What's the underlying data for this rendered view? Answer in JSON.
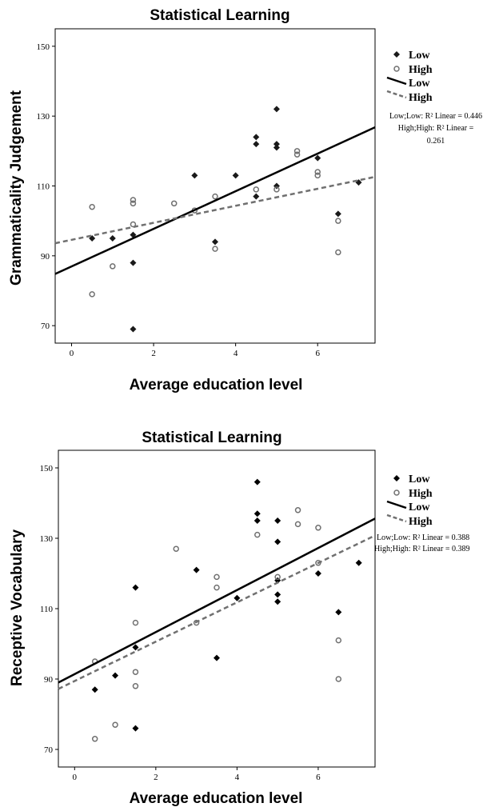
{
  "chart_data": [
    {
      "type": "scatter",
      "title": "Statistical Learning",
      "xlabel": "Average education level",
      "ylabel": "Grammaticality Judgement",
      "xlim": [
        -0.4,
        7.4
      ],
      "ylim": [
        65,
        155
      ],
      "xticks": [
        "0",
        "2",
        "4",
        "6"
      ],
      "yticks": [
        "70",
        "90",
        "110",
        "130",
        "150"
      ],
      "grid": false,
      "legend_position": "right",
      "series": [
        {
          "name": "Low",
          "marker": "diamond",
          "color": "#1a1a1a",
          "points": [
            [
              0.5,
              95
            ],
            [
              1,
              95
            ],
            [
              1.5,
              96
            ],
            [
              1.5,
              88
            ],
            [
              1.5,
              69
            ],
            [
              3,
              113
            ],
            [
              3.5,
              94
            ],
            [
              4,
              113
            ],
            [
              4.5,
              124
            ],
            [
              4.5,
              122
            ],
            [
              4.5,
              107
            ],
            [
              5,
              132
            ],
            [
              5,
              122
            ],
            [
              5,
              121
            ],
            [
              5,
              110
            ],
            [
              6,
              118
            ],
            [
              6.5,
              102
            ],
            [
              7,
              111
            ]
          ]
        },
        {
          "name": "High",
          "marker": "circle",
          "color": "#707070",
          "points": [
            [
              0.5,
              104
            ],
            [
              0.5,
              79
            ],
            [
              1,
              87
            ],
            [
              1.5,
              106
            ],
            [
              1.5,
              105
            ],
            [
              1.5,
              99
            ],
            [
              2.5,
              105
            ],
            [
              3,
              103
            ],
            [
              3.5,
              107
            ],
            [
              3.5,
              92
            ],
            [
              4.5,
              109
            ],
            [
              5,
              109
            ],
            [
              5.5,
              120
            ],
            [
              5.5,
              119
            ],
            [
              6,
              114
            ],
            [
              6,
              113
            ],
            [
              6.5,
              100
            ],
            [
              6.5,
              91
            ]
          ]
        }
      ],
      "fit_lines": [
        {
          "name": "Low",
          "style": "solid",
          "color": "#000000",
          "x": [
            -0.4,
            7.4
          ],
          "y": [
            84.8,
            126.8
          ]
        },
        {
          "name": "High",
          "style": "dashed",
          "color": "#707070",
          "x": [
            -0.4,
            7.4
          ],
          "y": [
            93.6,
            112.6
          ]
        }
      ],
      "annotation": [
        "Low;Low: R² Linear = 0.446",
        "High;High: R² Linear =",
        "0.261"
      ]
    },
    {
      "type": "scatter",
      "title": "Statistical Learning",
      "xlabel": "Average education level",
      "ylabel": "Receptive Vocabulary",
      "xlim": [
        -0.4,
        7.4
      ],
      "ylim": [
        65,
        155
      ],
      "xticks": [
        "0",
        "2",
        "4",
        "6"
      ],
      "yticks": [
        "70",
        "90",
        "110",
        "130",
        "150"
      ],
      "grid": false,
      "legend_position": "right",
      "series": [
        {
          "name": "Low",
          "marker": "diamond",
          "color": "#000000",
          "points": [
            [
              0.5,
              87
            ],
            [
              1,
              91
            ],
            [
              1.5,
              116
            ],
            [
              1.5,
              99
            ],
            [
              1.5,
              76
            ],
            [
              3,
              121
            ],
            [
              3.5,
              96
            ],
            [
              4,
              113
            ],
            [
              4.5,
              146
            ],
            [
              4.5,
              137
            ],
            [
              4.5,
              135
            ],
            [
              5,
              135
            ],
            [
              5,
              129
            ],
            [
              5,
              118
            ],
            [
              5,
              114
            ],
            [
              5,
              112
            ],
            [
              6,
              120
            ],
            [
              6.5,
              109
            ],
            [
              7,
              123
            ]
          ]
        },
        {
          "name": "High",
          "marker": "circle",
          "color": "#707070",
          "points": [
            [
              0.5,
              95
            ],
            [
              0.5,
              73
            ],
            [
              1,
              77
            ],
            [
              1.5,
              106
            ],
            [
              1.5,
              92
            ],
            [
              1.5,
              88
            ],
            [
              2.5,
              127
            ],
            [
              3,
              106
            ],
            [
              3.5,
              119
            ],
            [
              3.5,
              116
            ],
            [
              4.5,
              131
            ],
            [
              5,
              119
            ],
            [
              5.5,
              138
            ],
            [
              5.5,
              134
            ],
            [
              6,
              133
            ],
            [
              6,
              123
            ],
            [
              6.5,
              101
            ],
            [
              6.5,
              90
            ]
          ]
        }
      ],
      "fit_lines": [
        {
          "name": "Low",
          "style": "solid",
          "color": "#000000",
          "x": [
            -0.4,
            7.4
          ],
          "y": [
            89.0,
            135.6
          ]
        },
        {
          "name": "High",
          "style": "dashed",
          "color": "#707070",
          "x": [
            -0.4,
            7.4
          ],
          "y": [
            87.2,
            130.8
          ]
        }
      ],
      "annotation": [
        "Low;Low: R² Linear = 0.388",
        "High;High: R² Linear = 0.389"
      ]
    }
  ]
}
